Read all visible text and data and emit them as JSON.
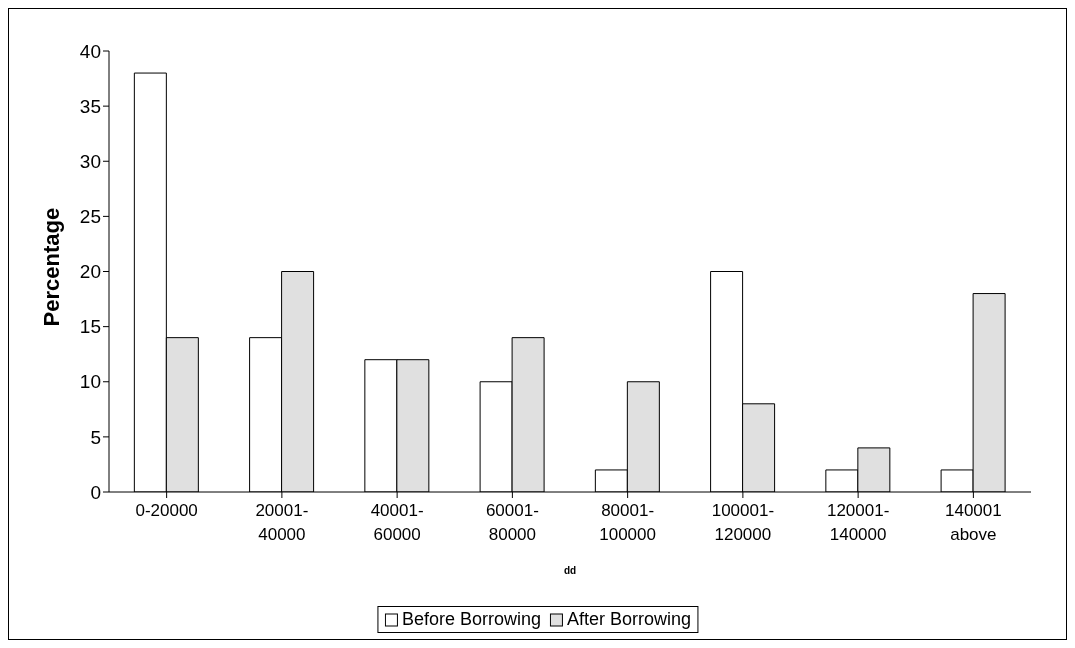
{
  "chart_data": {
    "type": "bar",
    "xlabel": "dd",
    "ylabel": "Percentage",
    "categories": [
      "0-20000",
      "20001-40000",
      "40001-60000",
      "60001-80000",
      "80001-100000",
      "100001-120000",
      "120001-140000",
      "140001 above"
    ],
    "series": [
      {
        "name": "Before Borrowing",
        "color": "#ffffff",
        "values": [
          38,
          14,
          12,
          10,
          2,
          20,
          2,
          2
        ]
      },
      {
        "name": "After Borrowing",
        "color": "#e0e0e0",
        "values": [
          14,
          20,
          12,
          14,
          10,
          8,
          4,
          18
        ]
      }
    ],
    "ylim": [
      0,
      40
    ],
    "yticks": [
      0,
      5,
      10,
      15,
      20,
      25,
      30,
      35,
      40
    ],
    "grid": false,
    "legend": "bottom"
  }
}
